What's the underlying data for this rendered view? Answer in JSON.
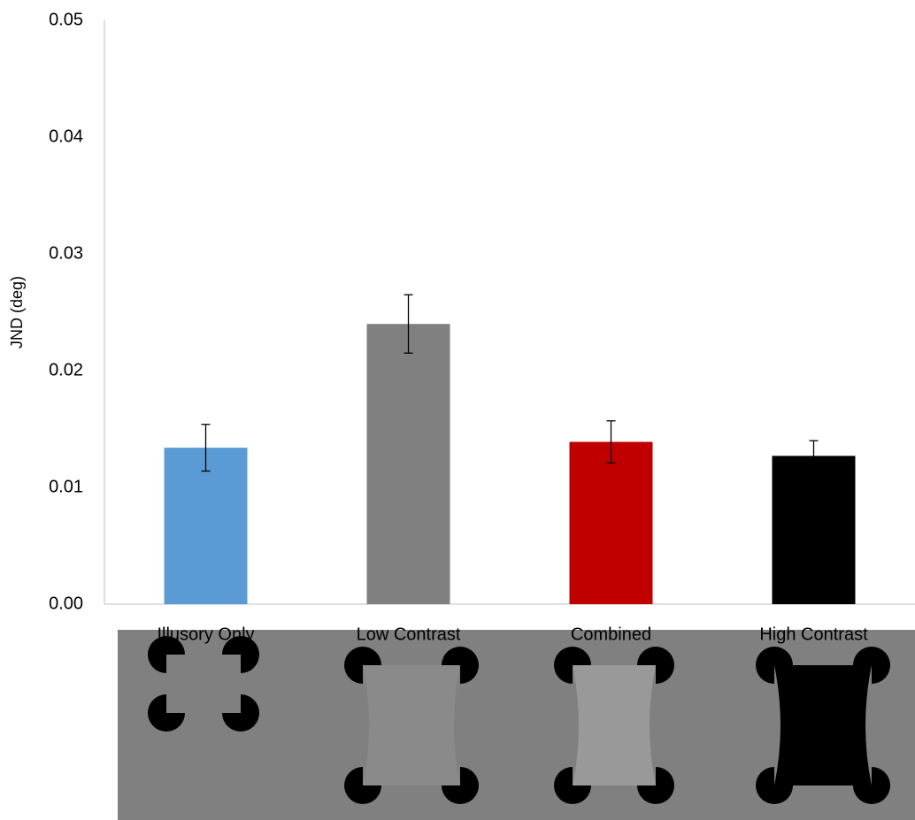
{
  "chart_data": {
    "type": "bar",
    "y_label": "JND (deg)",
    "categories": [
      "Illusory Only",
      "Low Contrast",
      "Combined",
      "High Contrast"
    ],
    "values": [
      0.0134,
      0.024,
      0.0139,
      0.0127
    ],
    "errors": [
      0.002,
      0.0025,
      0.0018,
      0.0013
    ],
    "colors": [
      "#5b9bd5",
      "#808080",
      "#c00000",
      "#000000"
    ],
    "ylim": [
      0,
      0.05
    ],
    "yticks": [
      {
        "value": 0,
        "label": "0.00"
      },
      0.01,
      0.02,
      0.03,
      0.04,
      0.05
    ],
    "grid": false
  }
}
